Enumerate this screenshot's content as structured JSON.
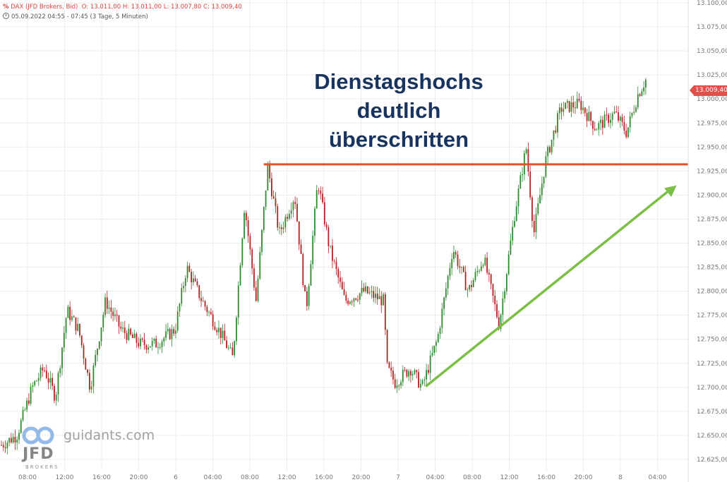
{
  "header": {
    "symbol": "DAX (JFD Brokers, Bid)",
    "ohlc": "O: 13.011,00  H: 13.011,00  L: 13.007,80  C: 13.009,40",
    "range": "05.09.2022 04:55 - 07:45   (3 Tage, 5 Minuten)"
  },
  "annotation": [
    "Dienstagshochs",
    "deutlich",
    "überschritten"
  ],
  "price_tag": "13.009,40",
  "watermark": {
    "brand": "JFD",
    "sub": "BROKERS",
    "site": "guidants.com"
  },
  "colors": {
    "up": "#2f8a2f",
    "down": "#b22222",
    "resistance": "#e5512b",
    "trend": "#7bbf44",
    "price_tag": "#e2504a",
    "text": "#17335e"
  },
  "chart_data": {
    "type": "candlestick",
    "y_range": [
      12615,
      13105
    ],
    "y_ticks": [
      {
        "v": 13100,
        "label": "13.100,00"
      },
      {
        "v": 13075,
        "label": "13.075,00"
      },
      {
        "v": 13050,
        "label": "13.050,00"
      },
      {
        "v": 13025,
        "label": "13.025,00"
      },
      {
        "v": 13000,
        "label": "13.000,00"
      },
      {
        "v": 12975,
        "label": "12.975,00"
      },
      {
        "v": 12950,
        "label": "12.950,00"
      },
      {
        "v": 12925,
        "label": "12.925,00"
      },
      {
        "v": 12900,
        "label": "12.900,00"
      },
      {
        "v": 12875,
        "label": "12.875,00"
      },
      {
        "v": 12850,
        "label": "12.850,00"
      },
      {
        "v": 12825,
        "label": "12.825,00"
      },
      {
        "v": 12800,
        "label": "12.800,00"
      },
      {
        "v": 12775,
        "label": "12.775,00"
      },
      {
        "v": 12750,
        "label": "12.750,00"
      },
      {
        "v": 12725,
        "label": "12.725,00"
      },
      {
        "v": 12700,
        "label": "12.700,00"
      },
      {
        "v": 12675,
        "label": "12.675,00"
      },
      {
        "v": 12650,
        "label": "12.650,00"
      },
      {
        "v": 12625,
        "label": "12.625,00"
      }
    ],
    "x_ticks": [
      "08:00",
      "12:00",
      "16:00",
      "20:00",
      "6",
      "04:00",
      "08:00",
      "12:00",
      "16:00",
      "20:00",
      "7",
      "04:00",
      "08:00",
      "12:00",
      "16:00",
      "20:00",
      "8",
      "04:00"
    ],
    "path_keypoints": [
      {
        "t": 0,
        "v": 12640
      },
      {
        "t": 4,
        "v": 12650
      },
      {
        "t": 8,
        "v": 12700
      },
      {
        "t": 11,
        "v": 12720
      },
      {
        "t": 14,
        "v": 12690
      },
      {
        "t": 17,
        "v": 12780
      },
      {
        "t": 20,
        "v": 12760
      },
      {
        "t": 23,
        "v": 12700
      },
      {
        "t": 27,
        "v": 12790
      },
      {
        "t": 31,
        "v": 12760
      },
      {
        "t": 36,
        "v": 12745
      },
      {
        "t": 40,
        "v": 12745
      },
      {
        "t": 45,
        "v": 12760
      },
      {
        "t": 48,
        "v": 12825
      },
      {
        "t": 52,
        "v": 12790
      },
      {
        "t": 57,
        "v": 12755
      },
      {
        "t": 60,
        "v": 12730
      },
      {
        "t": 63,
        "v": 12890
      },
      {
        "t": 66,
        "v": 12790
      },
      {
        "t": 69,
        "v": 12930
      },
      {
        "t": 72,
        "v": 12860
      },
      {
        "t": 76,
        "v": 12900
      },
      {
        "t": 79,
        "v": 12780
      },
      {
        "t": 82,
        "v": 12915
      },
      {
        "t": 85,
        "v": 12845
      },
      {
        "t": 89,
        "v": 12790
      },
      {
        "t": 94,
        "v": 12800
      },
      {
        "t": 99,
        "v": 12790
      },
      {
        "t": 100,
        "v": 12720
      },
      {
        "t": 102,
        "v": 12705
      },
      {
        "t": 106,
        "v": 12720
      },
      {
        "t": 109,
        "v": 12700
      },
      {
        "t": 113,
        "v": 12750
      },
      {
        "t": 117,
        "v": 12845
      },
      {
        "t": 121,
        "v": 12800
      },
      {
        "t": 125,
        "v": 12835
      },
      {
        "t": 129,
        "v": 12765
      },
      {
        "t": 133,
        "v": 12880
      },
      {
        "t": 136,
        "v": 12950
      },
      {
        "t": 138,
        "v": 12860
      },
      {
        "t": 141,
        "v": 12935
      },
      {
        "t": 145,
        "v": 12990
      },
      {
        "t": 150,
        "v": 12995
      },
      {
        "t": 154,
        "v": 12970
      },
      {
        "t": 159,
        "v": 12985
      },
      {
        "t": 162,
        "v": 12965
      },
      {
        "t": 165,
        "v": 13005
      },
      {
        "t": 167,
        "v": 13020
      }
    ],
    "resistance": {
      "value": 12932,
      "from_t": 68,
      "to_t": 178
    },
    "trendline": {
      "from": {
        "t": 110,
        "v": 12701
      },
      "to": {
        "t": 175,
        "v": 12910
      }
    },
    "last_price": 13009.4
  }
}
